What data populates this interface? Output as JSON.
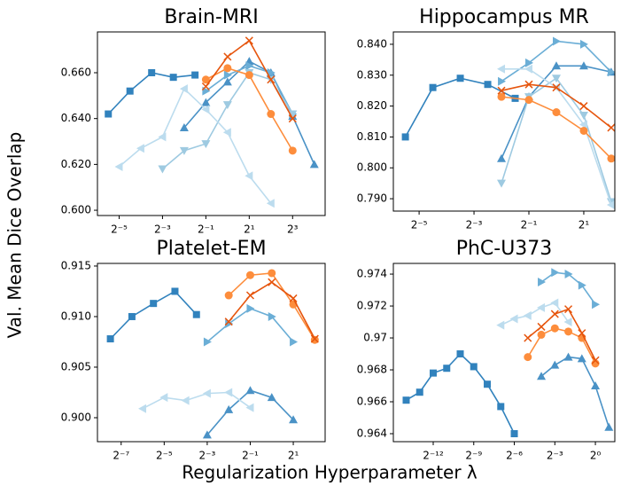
{
  "figure": {
    "xlabel": "Regularization Hyperparameter λ",
    "ylabel": "Val. Mean Dice Overlap"
  },
  "chart_data": [
    {
      "type": "line",
      "title": "Brain-MRI",
      "xscale": "log2",
      "xlim": [
        0.015625,
        22.63
      ],
      "ylim": [
        0.5977,
        0.6778
      ],
      "xticks": [
        {
          "value": 0.03125,
          "label": "2⁻⁵"
        },
        {
          "value": 0.125,
          "label": "2⁻³"
        },
        {
          "value": 0.5,
          "label": "2⁻¹"
        },
        {
          "value": 2,
          "label": "2¹"
        },
        {
          "value": 8,
          "label": "2³"
        }
      ],
      "yticks": [
        {
          "value": 0.6,
          "label": "0.600"
        },
        {
          "value": 0.62,
          "label": "0.620"
        },
        {
          "value": 0.64,
          "label": "0.640"
        },
        {
          "value": 0.66,
          "label": "0.660"
        }
      ],
      "series": [
        {
          "color": "#3182bd",
          "marker": "square",
          "x": [
            0.0221,
            0.04419,
            0.08839,
            0.1768,
            0.3536
          ],
          "values": [
            0.642,
            0.652,
            0.66,
            0.658,
            0.659
          ]
        },
        {
          "color": "#4a92c6",
          "marker": "triangle-up",
          "x": [
            0.25,
            0.5,
            1,
            2,
            4,
            8,
            16
          ],
          "values": [
            0.636,
            0.647,
            0.656,
            0.665,
            0.66,
            0.641,
            0.62
          ]
        },
        {
          "color": "#6baed6",
          "marker": "triangle-right",
          "x": [
            0.5,
            1,
            2,
            4,
            8
          ],
          "values": [
            0.652,
            0.659,
            0.663,
            0.66,
            0.642
          ]
        },
        {
          "color": "#9ecae1",
          "marker": "triangle-down",
          "x": [
            0.125,
            0.25,
            0.5,
            1,
            2,
            4,
            8
          ],
          "values": [
            0.618,
            0.626,
            0.629,
            0.646,
            0.66,
            0.657,
            0.642
          ]
        },
        {
          "color": "#bcdcee",
          "marker": "triangle-left",
          "x": [
            0.03125,
            0.0625,
            0.125,
            0.25,
            0.5,
            1,
            2,
            4
          ],
          "values": [
            0.619,
            0.627,
            0.632,
            0.653,
            0.644,
            0.634,
            0.615,
            0.603
          ]
        },
        {
          "color": "#fd8d3c",
          "marker": "circle",
          "x": [
            0.5,
            1,
            2,
            4,
            8
          ],
          "values": [
            0.657,
            0.662,
            0.659,
            0.642,
            0.626
          ]
        },
        {
          "color": "#e6550d",
          "marker": "x",
          "x": [
            0.5,
            1,
            2,
            4,
            8
          ],
          "values": [
            0.654,
            0.667,
            0.674,
            0.657,
            0.64
          ]
        }
      ]
    },
    {
      "type": "line",
      "title": "Hippocampus MR",
      "xscale": "log2",
      "xlim": [
        0.0163,
        4.38
      ],
      "ylim": [
        0.786,
        0.844
      ],
      "xticks": [
        {
          "value": 0.03125,
          "label": "2⁻⁵"
        },
        {
          "value": 0.125,
          "label": "2⁻³"
        },
        {
          "value": 0.5,
          "label": "2⁻¹"
        },
        {
          "value": 2,
          "label": "2¹"
        }
      ],
      "yticks": [
        {
          "value": 0.79,
          "label": "0.790"
        },
        {
          "value": 0.8,
          "label": "0.800"
        },
        {
          "value": 0.81,
          "label": "0.810"
        },
        {
          "value": 0.82,
          "label": "0.820"
        },
        {
          "value": 0.83,
          "label": "0.830"
        },
        {
          "value": 0.84,
          "label": "0.840"
        }
      ],
      "series": [
        {
          "color": "#3182bd",
          "marker": "square",
          "x": [
            0.0221,
            0.04419,
            0.08839,
            0.1768,
            0.3536
          ],
          "values": [
            0.81,
            0.826,
            0.829,
            0.827,
            0.8225
          ]
        },
        {
          "color": "#4a92c6",
          "marker": "triangle-up",
          "x": [
            0.25,
            0.5,
            1,
            2,
            4
          ],
          "values": [
            0.803,
            0.823,
            0.833,
            0.833,
            0.831
          ]
        },
        {
          "color": "#6baed6",
          "marker": "triangle-right",
          "x": [
            0.25,
            0.5,
            1,
            2,
            4
          ],
          "values": [
            0.828,
            0.834,
            0.841,
            0.84,
            0.831
          ]
        },
        {
          "color": "#9ecae1",
          "marker": "triangle-down",
          "x": [
            0.25,
            0.5,
            1,
            2,
            4
          ],
          "values": [
            0.795,
            0.823,
            0.829,
            0.817,
            0.789
          ]
        },
        {
          "color": "#bcdcee",
          "marker": "triangle-left",
          "x": [
            0.25,
            0.5,
            1,
            2,
            4
          ],
          "values": [
            0.832,
            0.832,
            0.826,
            0.814,
            0.788
          ]
        },
        {
          "color": "#fd8d3c",
          "marker": "circle",
          "x": [
            0.25,
            0.5,
            1,
            2,
            4
          ],
          "values": [
            0.823,
            0.822,
            0.818,
            0.812,
            0.803
          ]
        },
        {
          "color": "#e6550d",
          "marker": "x",
          "x": [
            0.25,
            0.5,
            1,
            2,
            4
          ],
          "values": [
            0.825,
            0.827,
            0.826,
            0.82,
            0.813
          ]
        }
      ]
    },
    {
      "type": "line",
      "title": "Platelet-EM",
      "xscale": "log2",
      "xlim": [
        0.00364,
        5.58
      ],
      "ylim": [
        0.89763,
        0.91526
      ],
      "xticks": [
        {
          "value": 0.0078125,
          "label": "2⁻⁷"
        },
        {
          "value": 0.03125,
          "label": "2⁻⁵"
        },
        {
          "value": 0.125,
          "label": "2⁻³"
        },
        {
          "value": 0.5,
          "label": "2⁻¹"
        },
        {
          "value": 2,
          "label": "2¹"
        }
      ],
      "yticks": [
        {
          "value": 0.9,
          "label": "0.900"
        },
        0.905,
        {
          "value": 0.91,
          "label": "0.910"
        },
        0.915
      ],
      "series": [
        {
          "color": "#3182bd",
          "marker": "square",
          "x": [
            0.005524,
            0.01105,
            0.0221,
            0.04419,
            0.08839
          ],
          "values": [
            0.9078,
            0.91,
            0.9113,
            0.9125,
            0.9102
          ]
        },
        {
          "color": "#4a92c6",
          "marker": "triangle-up",
          "x": [
            0.125,
            0.25,
            0.5,
            1,
            2
          ],
          "values": [
            0.8983,
            0.9008,
            0.9027,
            0.902,
            0.8998
          ]
        },
        {
          "color": "#6baed6",
          "marker": "triangle-right",
          "x": [
            0.125,
            0.25,
            0.5,
            1,
            2
          ],
          "values": [
            0.9075,
            0.9093,
            0.9108,
            0.91,
            0.9075
          ]
        },
        {
          "color": "#bcdcee",
          "marker": "triangle-left",
          "x": [
            0.015625,
            0.03125,
            0.0625,
            0.125,
            0.25,
            0.5
          ],
          "values": [
            0.9009,
            0.902,
            0.9017,
            0.9024,
            0.9025,
            0.901
          ]
        },
        {
          "color": "#fd8d3c",
          "marker": "circle",
          "x": [
            0.25,
            0.5,
            1,
            2,
            4
          ],
          "values": [
            0.9121,
            0.9141,
            0.9143,
            0.9112,
            0.9077
          ]
        },
        {
          "color": "#e6550d",
          "marker": "x",
          "x": [
            0.25,
            0.5,
            1,
            2,
            4
          ],
          "values": [
            0.9095,
            0.9121,
            0.9134,
            0.9118,
            0.9078
          ]
        }
      ]
    },
    {
      "type": "line",
      "title": "PhC-U373",
      "xscale": "log2",
      "xlim": [
        3.16e-05,
        2.71
      ],
      "ylim": [
        0.9635,
        0.97467
      ],
      "xticks": [
        {
          "value": 0.0002441,
          "label": "2⁻¹²"
        },
        {
          "value": 0.001953,
          "label": "2⁻⁹"
        },
        {
          "value": 0.015625,
          "label": "2⁻⁶"
        },
        {
          "value": 0.125,
          "label": "2⁻³"
        },
        {
          "value": 1,
          "label": "2⁰"
        }
      ],
      "yticks": [
        0.964,
        0.966,
        0.968,
        0.97,
        0.972,
        0.974
      ],
      "series": [
        {
          "color": "#3182bd",
          "marker": "square",
          "x": [
            6.104e-05,
            0.0001221,
            0.0002441,
            0.0004883,
            0.0009766,
            0.001953,
            0.003906,
            0.0078125,
            0.015625
          ],
          "values": [
            0.9661,
            0.9666,
            0.9678,
            0.9681,
            0.969,
            0.9682,
            0.9671,
            0.9657,
            0.964
          ]
        },
        {
          "color": "#4a92c6",
          "marker": "triangle-up",
          "x": [
            0.0625,
            0.125,
            0.25,
            0.5,
            1,
            2
          ],
          "values": [
            0.9676,
            0.9683,
            0.9688,
            0.9687,
            0.967,
            0.9644
          ]
        },
        {
          "color": "#6baed6",
          "marker": "triangle-right",
          "x": [
            0.0625,
            0.125,
            0.25,
            0.5,
            1
          ],
          "values": [
            0.9735,
            0.9741,
            0.974,
            0.9733,
            0.9721
          ]
        },
        {
          "color": "#bcdcee",
          "marker": "triangle-left",
          "x": [
            0.0078125,
            0.015625,
            0.03125,
            0.0625,
            0.125,
            0.25
          ],
          "values": [
            0.9708,
            0.9712,
            0.9714,
            0.9719,
            0.9722,
            0.971
          ]
        },
        {
          "color": "#fd8d3c",
          "marker": "circle",
          "x": [
            0.03125,
            0.0625,
            0.125,
            0.25,
            0.5,
            1
          ],
          "values": [
            0.9688,
            0.9702,
            0.9706,
            0.9704,
            0.97,
            0.9684
          ]
        },
        {
          "color": "#e6550d",
          "marker": "x",
          "x": [
            0.03125,
            0.0625,
            0.125,
            0.25,
            0.5,
            1
          ],
          "values": [
            0.97,
            0.9707,
            0.9715,
            0.9718,
            0.9703,
            0.9686
          ]
        }
      ]
    }
  ]
}
